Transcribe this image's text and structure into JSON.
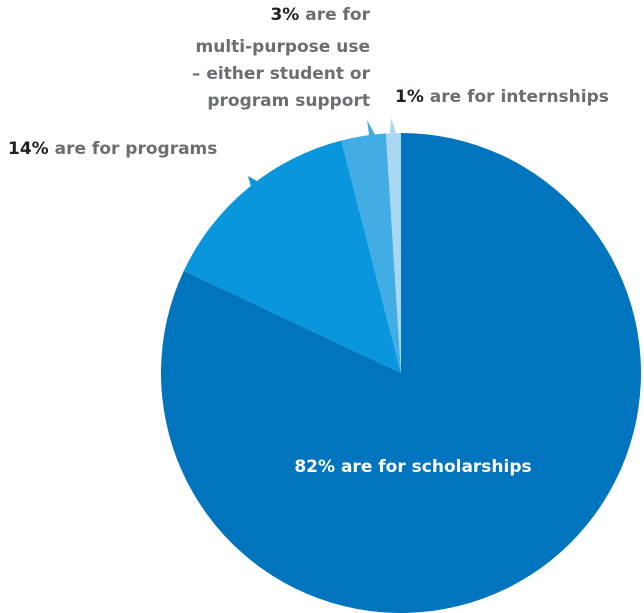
{
  "chart_data": {
    "type": "pie",
    "start_angle_deg": 0,
    "direction": "clockwise",
    "slices": [
      {
        "label": "are for scholarships",
        "value": 82,
        "display": "82%",
        "color": "#0074bd"
      },
      {
        "label": "are for programs",
        "value": 14,
        "display": "14%",
        "color": "#0996dc"
      },
      {
        "label": "multi-purpose use – either student or program support",
        "value": 3,
        "display": "3%",
        "color": "#41ade4"
      },
      {
        "label": "are for internships",
        "value": 1,
        "display": "1%",
        "color": "#a9d7f2"
      }
    ]
  },
  "labels": {
    "scholarships": {
      "pct": "82%",
      "text": " are for scholarships"
    },
    "programs": {
      "pct": "14%",
      "text": " are for programs"
    },
    "multipurpose": {
      "pct": "3%",
      "line1": " are for",
      "line2": "multi-purpose use",
      "line3": "– either student or",
      "line4": "program support"
    },
    "internships": {
      "pct": "1%",
      "text": " are for internships"
    }
  }
}
